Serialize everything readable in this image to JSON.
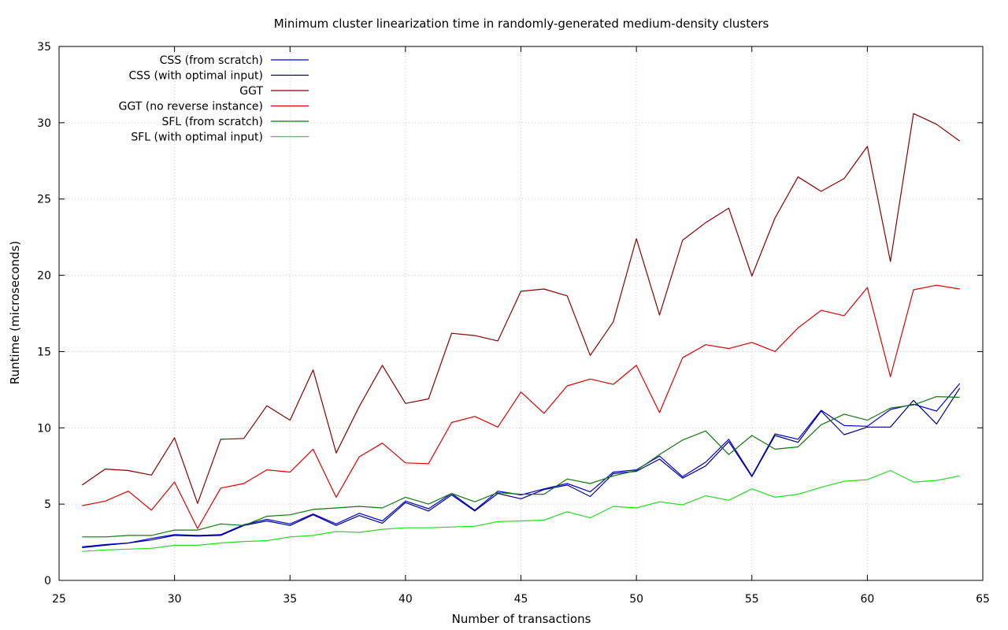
{
  "chart_data": {
    "type": "line",
    "title": "Minimum cluster linearization time in randomly-generated medium-density clusters",
    "xlabel": "Number of transactions",
    "ylabel": "Runtime (microseconds)",
    "xlim": [
      25,
      65
    ],
    "ylim": [
      0,
      35
    ],
    "xticks": [
      25,
      30,
      35,
      40,
      45,
      50,
      55,
      60,
      65
    ],
    "yticks": [
      0,
      5,
      10,
      15,
      20,
      25,
      30,
      35
    ],
    "grid": true,
    "legend_position": "top-left",
    "x": [
      26,
      27,
      28,
      29,
      30,
      31,
      32,
      33,
      34,
      35,
      36,
      37,
      38,
      39,
      40,
      41,
      42,
      43,
      44,
      45,
      46,
      47,
      48,
      49,
      50,
      51,
      52,
      53,
      54,
      55,
      56,
      57,
      58,
      59,
      60,
      61,
      62,
      63,
      64
    ],
    "series": [
      {
        "name": "CSS (from scratch)",
        "color": "#0000dd",
        "values": [
          2.2,
          2.35,
          2.45,
          2.75,
          3.0,
          2.95,
          3.0,
          3.65,
          4.0,
          3.7,
          4.35,
          3.7,
          4.4,
          3.9,
          5.2,
          4.7,
          5.7,
          4.6,
          5.85,
          5.6,
          6.0,
          6.35,
          5.8,
          7.1,
          7.25,
          8.15,
          6.8,
          7.75,
          9.25,
          6.85,
          9.6,
          9.25,
          11.15,
          10.15,
          10.1,
          11.2,
          11.55,
          11.1,
          12.9
        ]
      },
      {
        "name": "CSS (with optimal input)",
        "color": "#000088",
        "values": [
          2.15,
          2.3,
          2.45,
          2.65,
          2.95,
          2.9,
          2.95,
          3.6,
          3.9,
          3.6,
          4.3,
          3.6,
          4.25,
          3.75,
          5.1,
          4.55,
          5.6,
          4.55,
          5.7,
          5.35,
          5.95,
          6.25,
          5.5,
          7.0,
          7.15,
          7.95,
          6.7,
          7.5,
          9.1,
          6.8,
          9.5,
          9.05,
          11.1,
          9.55,
          10.05,
          10.05,
          11.8,
          10.25,
          12.6
        ]
      },
      {
        "name": "GGT",
        "color": "#880000",
        "values": [
          6.25,
          7.3,
          7.2,
          6.9,
          9.35,
          5.05,
          9.25,
          9.3,
          11.45,
          10.5,
          13.8,
          8.35,
          11.4,
          14.1,
          11.6,
          11.9,
          16.2,
          16.05,
          15.7,
          18.95,
          19.1,
          18.65,
          14.75,
          16.95,
          22.4,
          17.4,
          22.3,
          23.45,
          24.4,
          19.95,
          23.75,
          26.45,
          25.5,
          26.35,
          28.45,
          20.9,
          30.6,
          29.9,
          28.8
        ]
      },
      {
        "name": "GGT (no reverse instance)",
        "color": "#dd0000",
        "values": [
          4.9,
          5.2,
          5.85,
          4.6,
          6.45,
          3.4,
          6.05,
          6.35,
          7.25,
          7.1,
          8.6,
          5.45,
          8.1,
          9.0,
          7.7,
          7.65,
          10.35,
          10.75,
          10.05,
          12.35,
          10.95,
          12.75,
          13.2,
          12.85,
          14.1,
          11.0,
          14.6,
          15.45,
          15.2,
          15.6,
          15.0,
          16.55,
          17.7,
          17.35,
          19.2,
          13.35,
          19.05,
          19.35,
          19.1
        ]
      },
      {
        "name": "SFL (from scratch)",
        "color": "#117711",
        "values": [
          2.85,
          2.85,
          2.95,
          2.95,
          3.3,
          3.3,
          3.7,
          3.6,
          4.2,
          4.3,
          4.65,
          4.75,
          4.85,
          4.75,
          5.45,
          5.0,
          5.7,
          5.15,
          5.75,
          5.65,
          5.65,
          6.65,
          6.35,
          6.85,
          7.2,
          8.25,
          9.2,
          9.8,
          8.25,
          9.5,
          8.6,
          8.75,
          10.2,
          10.9,
          10.5,
          11.3,
          11.5,
          12.05,
          12.0
        ]
      },
      {
        "name": "SFL (with optimal input)",
        "color": "#22dd22",
        "values": [
          1.9,
          2.0,
          2.05,
          2.1,
          2.3,
          2.3,
          2.45,
          2.55,
          2.6,
          2.85,
          2.95,
          3.2,
          3.15,
          3.35,
          3.45,
          3.45,
          3.5,
          3.55,
          3.85,
          3.9,
          3.95,
          4.5,
          4.1,
          4.85,
          4.75,
          5.15,
          4.95,
          5.55,
          5.25,
          6.0,
          5.45,
          5.65,
          6.1,
          6.5,
          6.6,
          7.2,
          6.45,
          6.55,
          6.85
        ]
      }
    ]
  }
}
